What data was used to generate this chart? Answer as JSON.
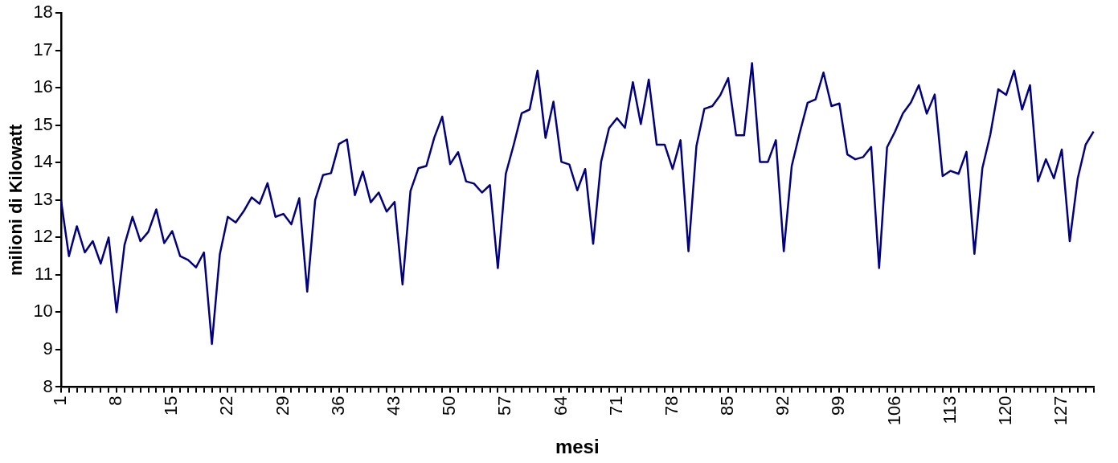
{
  "chart_data": {
    "type": "line",
    "xlabel": "mesi",
    "ylabel": "milioni di Kilowatt",
    "categories": [
      "1",
      null,
      null,
      null,
      null,
      null,
      null,
      "8",
      null,
      null,
      null,
      null,
      null,
      null,
      "15",
      null,
      null,
      null,
      null,
      null,
      null,
      "22",
      null,
      null,
      null,
      null,
      null,
      null,
      "29",
      null,
      null,
      null,
      null,
      null,
      null,
      "36",
      null,
      null,
      null,
      null,
      null,
      null,
      "43",
      null,
      null,
      null,
      null,
      null,
      null,
      "50",
      null,
      null,
      null,
      null,
      null,
      null,
      "57",
      null,
      null,
      null,
      null,
      null,
      null,
      "64",
      null,
      null,
      null,
      null,
      null,
      null,
      "71",
      null,
      null,
      null,
      null,
      null,
      null,
      "78",
      null,
      null,
      null,
      null,
      null,
      null,
      "85",
      null,
      null,
      null,
      null,
      null,
      null,
      "92",
      null,
      null,
      null,
      null,
      null,
      null,
      "99",
      null,
      null,
      null,
      null,
      null,
      null,
      "106",
      null,
      null,
      null,
      null,
      null,
      null,
      "113",
      null,
      null,
      null,
      null,
      null,
      null,
      "120",
      null,
      null,
      null,
      null,
      null,
      null,
      "127",
      null,
      null,
      null,
      null
    ],
    "series": [
      {
        "color": "#000080",
        "values": [
          13.0,
          11.5,
          12.3,
          11.6,
          11.9,
          11.3,
          12.0,
          10.0,
          11.8,
          12.55,
          11.9,
          12.15,
          12.75,
          11.85,
          12.17,
          11.5,
          11.4,
          11.2,
          11.6,
          9.15,
          11.55,
          12.55,
          12.4,
          12.7,
          13.07,
          12.9,
          13.45,
          12.55,
          12.63,
          12.35,
          13.05,
          10.55,
          13.0,
          13.67,
          13.72,
          14.5,
          14.62,
          13.13,
          13.76,
          12.94,
          13.2,
          12.69,
          12.95,
          10.74,
          13.24,
          13.85,
          13.91,
          14.67,
          15.23,
          13.96,
          14.28,
          13.5,
          13.44,
          13.2,
          13.4,
          11.18,
          13.7,
          14.48,
          15.32,
          15.42,
          16.46,
          14.66,
          15.63,
          14.02,
          13.95,
          13.26,
          13.83,
          11.83,
          14.02,
          14.92,
          15.19,
          14.93,
          16.15,
          15.03,
          16.22,
          14.48,
          14.48,
          13.83,
          14.6,
          11.63,
          14.44,
          15.44,
          15.51,
          15.8,
          16.26,
          14.73,
          14.73,
          16.66,
          14.02,
          14.02,
          14.6,
          11.63,
          13.91,
          14.79,
          15.6,
          15.69,
          16.41,
          15.51,
          15.58,
          14.22,
          14.09,
          14.15,
          14.42,
          11.18,
          14.41,
          14.83,
          15.32,
          15.61,
          16.07,
          15.31,
          15.82,
          13.64,
          13.78,
          13.7,
          14.29,
          11.56,
          13.85,
          14.75,
          15.96,
          15.81,
          16.46,
          15.42,
          16.07,
          13.5,
          14.09,
          13.58,
          14.35,
          11.9,
          13.57,
          14.48,
          14.83
        ]
      }
    ],
    "ylim": [
      8,
      18
    ],
    "yticks": [
      8,
      9,
      10,
      11,
      12,
      13,
      14,
      15,
      16,
      17,
      18
    ],
    "grid": false,
    "legend": false,
    "marker": "none",
    "line_style": "solid"
  }
}
